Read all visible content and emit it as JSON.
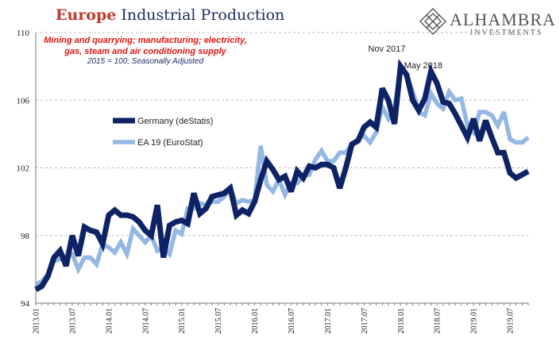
{
  "header": {
    "title_brand": "Europe",
    "title_rest": "Industrial Production",
    "subtitle_line1": "Mining and quarrying; manufacturing; electricity,",
    "subtitle_line2": "gas, steam and air conditioning supply",
    "subtitle_note": "2015 = 100; Seasonally Adjusted"
  },
  "logo": {
    "name": "ALHAMBRA",
    "tagline": "INVESTMENTS",
    "icon": "diamond-lattice-icon"
  },
  "colors": {
    "germany": "#0d2366",
    "ea19": "#94b8e3",
    "grid": "#bbbbbb",
    "axis_text": "#222222"
  },
  "chart_data": {
    "type": "line",
    "ylim": [
      94,
      110
    ],
    "yticks": [
      94,
      98,
      102,
      106,
      110
    ],
    "grid": "horizontal dashed",
    "legend_placement": "center-left",
    "xtick_labels": [
      "2013.01",
      "2013.07",
      "2014.01",
      "2014.07",
      "2015.01",
      "2015.07",
      "2016.01",
      "2016.07",
      "2017.01",
      "2017.07",
      "2018.01",
      "2018.07",
      "2019.01",
      "2019.07"
    ],
    "annotations": [
      {
        "text": "Nov 2017",
        "month_index": 58,
        "y": 108.6
      },
      {
        "text": "May 2018",
        "month_index": 64,
        "y": 107.6
      }
    ],
    "series": [
      {
        "name": "Germany (deStatis)",
        "values": [
          94.8,
          95.0,
          95.6,
          96.7,
          97.1,
          96.2,
          98.0,
          96.8,
          98.5,
          98.3,
          98.2,
          97.5,
          99.2,
          99.5,
          99.2,
          99.2,
          99.1,
          98.8,
          98.3,
          98.0,
          99.8,
          96.7,
          98.6,
          98.8,
          98.9,
          98.7,
          100.5,
          99.3,
          99.6,
          100.3,
          100.4,
          100.5,
          100.8,
          99.2,
          99.5,
          99.3,
          100.0,
          101.3,
          102.4,
          101.9,
          101.3,
          101.5,
          100.6,
          101.8,
          101.4,
          102.1,
          102.0,
          102.2,
          102.2,
          102.0,
          100.8,
          102.0,
          103.4,
          103.6,
          104.4,
          104.7,
          104.4,
          106.7,
          106.0,
          104.6,
          108.0,
          107.5,
          106.0,
          105.4,
          106.1,
          107.7,
          107.0,
          105.9,
          105.8,
          105.2,
          104.5,
          103.8,
          104.9,
          103.6,
          104.8,
          103.8,
          102.9,
          102.9,
          101.7,
          101.4,
          101.6,
          101.8
        ]
      },
      {
        "name": "EA 19 (EuroStat)",
        "values": [
          95.1,
          95.3,
          95.7,
          96.5,
          96.6,
          96.8,
          96.9,
          96.0,
          96.7,
          96.7,
          96.3,
          97.5,
          97.3,
          97.0,
          97.6,
          96.9,
          98.4,
          98.0,
          97.6,
          98.0,
          97.1,
          97.3,
          96.9,
          98.3,
          98.1,
          99.6,
          99.6,
          99.9,
          99.8,
          100.0,
          100.0,
          100.3,
          100.8,
          99.9,
          100.1,
          100.0,
          100.1,
          103.3,
          101.0,
          100.6,
          101.3,
          100.4,
          101.1,
          101.1,
          101.5,
          101.6,
          102.5,
          103.0,
          102.4,
          102.4,
          102.9,
          102.9,
          103.4,
          103.7,
          103.9,
          103.5,
          104.1,
          105.6,
          104.9,
          105.5,
          107.9,
          107.5,
          106.5,
          105.3,
          105.1,
          106.4,
          105.8,
          105.5,
          106.5,
          106.0,
          106.1,
          104.5,
          104.1,
          105.3,
          105.3,
          105.1,
          104.5,
          105.3,
          103.7,
          103.5,
          103.5,
          103.8
        ]
      }
    ]
  }
}
